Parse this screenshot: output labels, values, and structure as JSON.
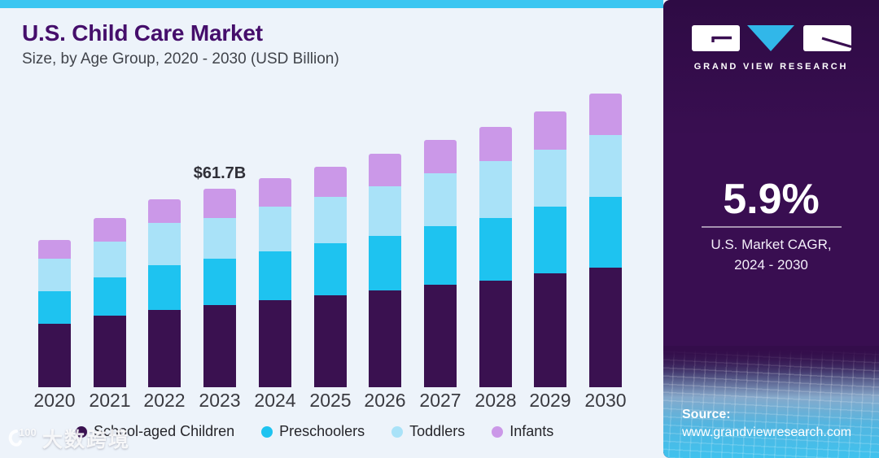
{
  "header": {
    "title": "U.S. Child Care Market",
    "subtitle": "Size, by Age Group, 2020 - 2030 (USD Billion)"
  },
  "chart_data": {
    "type": "bar",
    "stacked": true,
    "title": "U.S. Child Care Market",
    "subtitle": "Size, by Age Group, 2020 - 2030 (USD Billion)",
    "unit": "USD Billion",
    "categories": [
      "2020",
      "2021",
      "2022",
      "2023",
      "2024",
      "2025",
      "2026",
      "2027",
      "2028",
      "2029",
      "2030"
    ],
    "series": [
      {
        "name": "School-aged Children",
        "color": "#3a1150",
        "values": [
          19.7,
          22.2,
          24.0,
          25.5,
          27.2,
          28.5,
          30.2,
          31.9,
          33.3,
          35.4,
          37.3
        ]
      },
      {
        "name": "Preschoolers",
        "color": "#1ec3f0",
        "values": [
          10.1,
          12.0,
          13.9,
          14.6,
          15.2,
          16.4,
          17.0,
          18.3,
          19.4,
          20.9,
          21.9
        ]
      },
      {
        "name": "Toddlers",
        "color": "#a9e2f8",
        "values": [
          10.1,
          11.2,
          13.3,
          12.5,
          13.9,
          14.3,
          15.4,
          16.3,
          17.6,
          17.7,
          19.4
        ]
      },
      {
        "name": "Infants",
        "color": "#cb98e8",
        "values": [
          5.9,
          7.2,
          7.2,
          9.1,
          8.9,
          9.5,
          10.1,
          10.5,
          10.7,
          11.9,
          12.9
        ]
      }
    ],
    "totals": [
      45.8,
      52.6,
      58.4,
      61.7,
      65.2,
      68.7,
      72.7,
      77.0,
      81.0,
      85.9,
      91.5
    ],
    "annotation": {
      "category": "2023",
      "label": "$61.7B"
    },
    "ylim": [
      0,
      95
    ],
    "grid": false,
    "legend_position": "bottom"
  },
  "sidebar": {
    "brand": "GRAND VIEW RESEARCH",
    "cagr_value": "5.9%",
    "cagr_caption_line1": "U.S. Market CAGR,",
    "cagr_caption_line2": "2024 - 2030",
    "source_label": "Source:",
    "source_url": "www.grandviewresearch.com"
  },
  "watermark": {
    "badge": "100",
    "text": "大数跨境"
  },
  "colors": {
    "accent_strip": "#3cc6f1",
    "title": "#450e6b",
    "chart_background": "#edf3fa",
    "sidebar_background": "#390e51",
    "logo_triangle": "#31b7e9",
    "mesh_bottom": "#3fc2ee"
  }
}
